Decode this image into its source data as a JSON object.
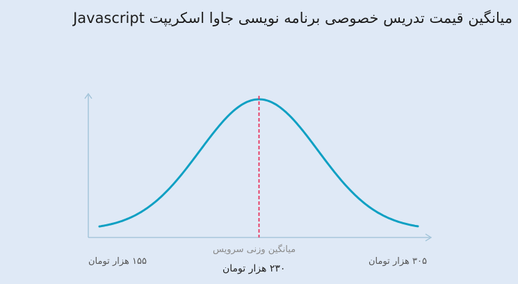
{
  "title": "میانگین قیمت تدریس خصوصی برنامه نویسی جاوا اسکریپت Javascript",
  "chart_data": {
    "type": "line",
    "min_label": "۱۵۵ هزار تومان",
    "max_label": "۳۰۵ هزار تومان",
    "average_caption": "میانگین وزنی سرویس",
    "average_value_label": "۲۳۰ هزار تومان",
    "x_min": 155,
    "x_max": 305,
    "average": 230,
    "curve_color": "#0fa0c3",
    "average_line_color": "#e8335c",
    "axis_color": "#9cc0d6"
  }
}
